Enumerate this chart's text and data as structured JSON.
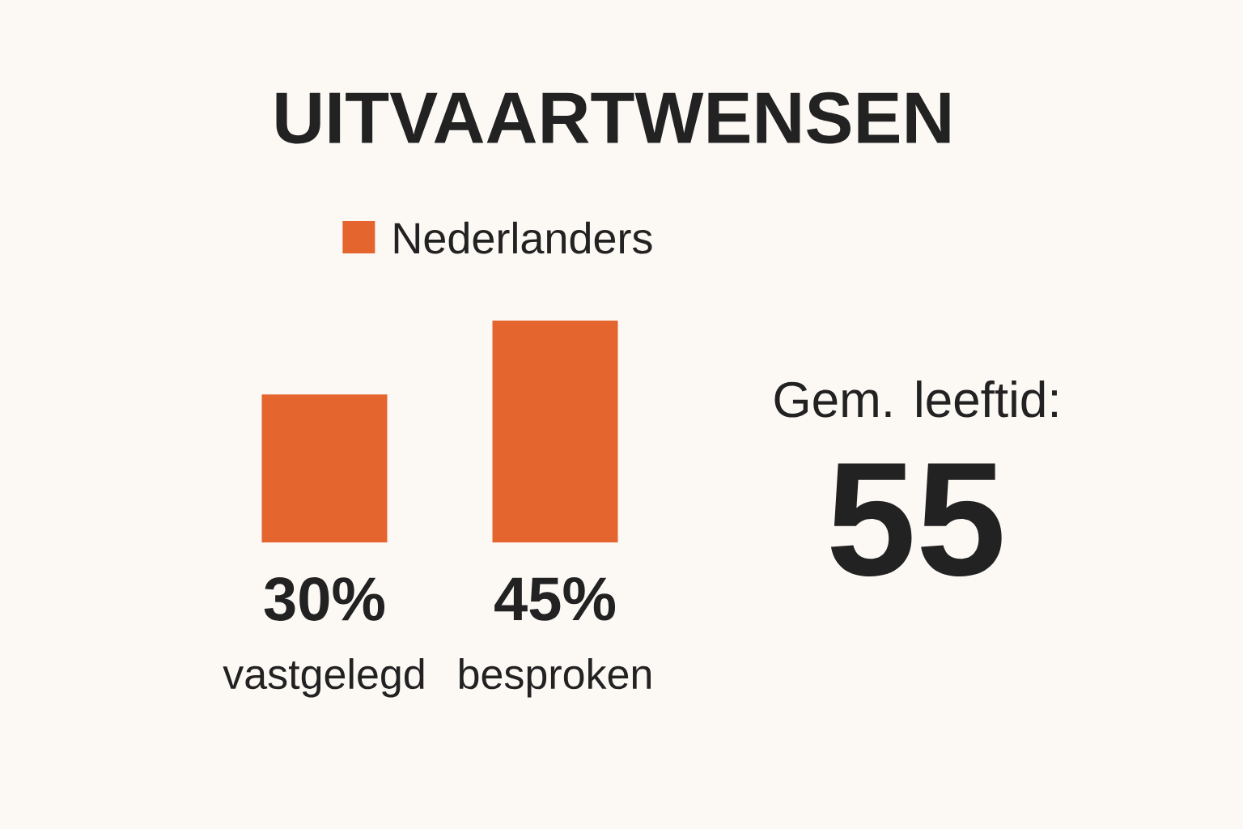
{
  "chart_data": [
    {
      "type": "bar",
      "title": "UITVAARTWENSEN",
      "categories": [
        "vastgelegd",
        "besproken"
      ],
      "series": [
        {
          "name": "Nederlanders",
          "color": "#e5652e",
          "values": [
            30,
            45
          ],
          "value_labels": [
            "30%",
            "45%"
          ]
        }
      ],
      "legend": "top"
    },
    {
      "type": "other",
      "title": "Gem. leeftid:",
      "annotations": [
        "55"
      ]
    }
  ]
}
